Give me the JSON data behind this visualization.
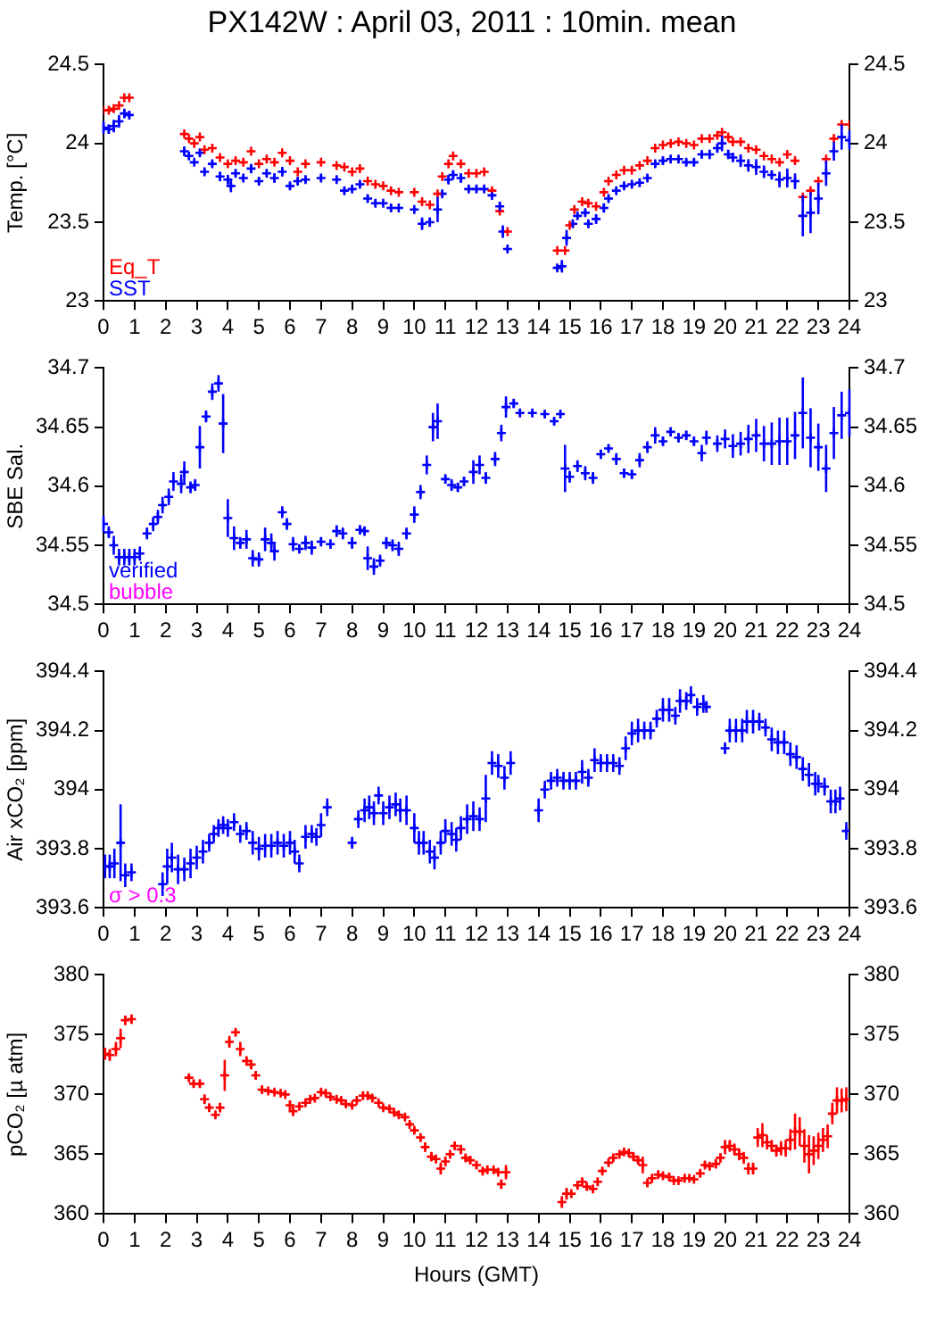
{
  "chart_data": [
    {
      "type": "scatter",
      "title": "PX142W : April 03, 2011 : 10min. mean",
      "ylabel": "Temp. [°C]",
      "xlim": [
        0,
        24
      ],
      "xticks": [
        0,
        1,
        2,
        3,
        4,
        5,
        6,
        7,
        8,
        9,
        10,
        11,
        12,
        13,
        14,
        15,
        16,
        17,
        18,
        19,
        20,
        21,
        22,
        23,
        24
      ],
      "ylim": [
        23,
        24.5
      ],
      "yticks": [
        23,
        23.5,
        24,
        24.5
      ],
      "y2lim": [
        23,
        24.5
      ],
      "y2ticks": [
        23,
        23.5,
        24,
        24.5
      ],
      "marker": "cross",
      "legend": "bottom left",
      "series": [
        {
          "name": "Eq_T",
          "color": "#ff0000",
          "x": [
            0,
            0.17,
            0.33,
            0.5,
            0.67,
            0.83,
            2.6,
            2.75,
            2.92,
            3.1,
            3.25,
            3.5,
            3.75,
            4,
            4.25,
            4.5,
            4.75,
            5,
            5.25,
            5.5,
            5.75,
            6,
            6.25,
            6.5,
            7,
            7.5,
            7.75,
            8,
            8.25,
            8.5,
            8.75,
            9,
            9.25,
            9.5,
            10,
            10.25,
            10.5,
            10.75,
            10.9,
            11.1,
            11.25,
            11.5,
            11.75,
            12,
            12.25,
            12.5,
            12.75,
            13,
            14.6,
            14.85,
            15,
            15.15,
            15.4,
            15.6,
            15.85,
            16.1,
            16.25,
            16.5,
            16.75,
            17,
            17.25,
            17.5,
            17.75,
            18,
            18.25,
            18.5,
            18.75,
            19,
            19.25,
            19.5,
            19.75,
            19.9,
            20.1,
            20.25,
            20.5,
            20.75,
            21,
            21.25,
            21.5,
            21.75,
            22,
            22.25,
            22.5,
            22.75,
            23,
            23.25,
            23.5,
            23.75,
            24
          ],
          "values": [
            24.21,
            24.21,
            24.22,
            24.24,
            24.29,
            24.29,
            24.06,
            24.03,
            24.0,
            24.04,
            23.96,
            23.97,
            23.91,
            23.87,
            23.89,
            23.88,
            23.95,
            23.87,
            23.9,
            23.88,
            23.94,
            23.89,
            23.82,
            23.87,
            23.88,
            23.86,
            23.85,
            23.82,
            23.84,
            23.76,
            23.74,
            23.73,
            23.7,
            23.69,
            23.69,
            23.63,
            23.61,
            23.68,
            23.79,
            23.87,
            23.92,
            23.87,
            23.81,
            23.81,
            23.82,
            23.7,
            23.57,
            23.44,
            23.32,
            23.32,
            23.48,
            23.58,
            23.63,
            23.62,
            23.6,
            23.69,
            23.76,
            23.8,
            23.83,
            23.83,
            23.86,
            23.89,
            23.97,
            23.99,
            24.0,
            24.01,
            24.0,
            23.99,
            24.03,
            24.03,
            24.05,
            24.07,
            24.04,
            24.01,
            24.01,
            23.97,
            23.96,
            23.92,
            23.9,
            23.88,
            23.93,
            23.89,
            23.66,
            23.7,
            23.76,
            23.9,
            24.03,
            24.12,
            24.12
          ]
        },
        {
          "name": "SST",
          "color": "#0000ff",
          "x": [
            0,
            0.17,
            0.33,
            0.5,
            0.67,
            0.83,
            2.6,
            2.75,
            2.92,
            3.1,
            3.25,
            3.5,
            3.75,
            4,
            4.1,
            4.25,
            4.5,
            4.75,
            5,
            5.25,
            5.5,
            5.75,
            6,
            6.25,
            6.5,
            7,
            7.5,
            7.75,
            8,
            8.25,
            8.5,
            8.75,
            9,
            9.25,
            9.5,
            10,
            10.25,
            10.5,
            10.75,
            10.9,
            11.1,
            11.25,
            11.5,
            11.75,
            12,
            12.25,
            12.5,
            12.75,
            12.85,
            13,
            14.6,
            14.75,
            14.9,
            15.1,
            15.25,
            15.5,
            15.6,
            15.85,
            16.1,
            16.25,
            16.5,
            16.75,
            17,
            17.25,
            17.5,
            17.75,
            18,
            18.25,
            18.5,
            18.75,
            19,
            19.25,
            19.5,
            19.75,
            19.9,
            20.1,
            20.25,
            20.5,
            20.75,
            21,
            21.25,
            21.5,
            21.75,
            22,
            22.25,
            22.5,
            22.75,
            23,
            23.25,
            23.5,
            23.75,
            24
          ],
          "values": [
            24.1,
            24.09,
            24.11,
            24.14,
            24.19,
            24.18,
            23.95,
            23.92,
            23.88,
            23.94,
            23.82,
            23.87,
            23.79,
            23.77,
            23.73,
            23.81,
            23.78,
            23.84,
            23.76,
            23.81,
            23.78,
            23.82,
            23.73,
            23.76,
            23.77,
            23.78,
            23.77,
            23.7,
            23.71,
            23.74,
            23.65,
            23.62,
            23.62,
            23.59,
            23.59,
            23.58,
            23.49,
            23.5,
            23.58,
            23.68,
            23.77,
            23.8,
            23.78,
            23.71,
            23.71,
            23.71,
            23.67,
            23.6,
            23.44,
            23.33,
            23.21,
            23.22,
            23.4,
            23.49,
            23.54,
            23.56,
            23.49,
            23.52,
            23.59,
            23.65,
            23.7,
            23.73,
            23.74,
            23.75,
            23.78,
            23.87,
            23.89,
            23.9,
            23.9,
            23.88,
            23.88,
            23.93,
            23.93,
            23.97,
            24.0,
            23.93,
            23.91,
            23.89,
            23.86,
            23.85,
            23.82,
            23.8,
            23.77,
            23.78,
            23.76,
            23.54,
            23.56,
            23.65,
            23.81,
            23.95,
            24.04,
            24.02
          ],
          "errors": [
            0.04,
            0.03,
            0.04,
            0.04,
            0.03,
            0.02,
            0.03,
            0.02,
            0.01,
            0.02,
            0.02,
            0.02,
            0.03,
            0.03,
            0.04,
            0.02,
            0.02,
            0.03,
            0.02,
            0.02,
            0.03,
            0.03,
            0.02,
            0.02,
            0.02,
            0.02,
            0.02,
            0.02,
            0.02,
            0.02,
            0.02,
            0.02,
            0.01,
            0.02,
            0.01,
            0.01,
            0.04,
            0.03,
            0.08,
            0.02,
            0.03,
            0.03,
            0.03,
            0.02,
            0.02,
            0.02,
            0.02,
            0.03,
            0.04,
            0.02,
            0.02,
            0.04,
            0.05,
            0.02,
            0.02,
            0.02,
            0.02,
            0.03,
            0.03,
            0.02,
            0.02,
            0.02,
            0.02,
            0.02,
            0.02,
            0.02,
            0.02,
            0.02,
            0.02,
            0.02,
            0.02,
            0.02,
            0.03,
            0.03,
            0.05,
            0.03,
            0.03,
            0.04,
            0.04,
            0.05,
            0.04,
            0.03,
            0.05,
            0.06,
            0.05,
            0.13,
            0.13,
            0.1,
            0.08,
            0.06,
            0.08,
            0.06
          ]
        }
      ]
    },
    {
      "type": "scatter",
      "ylabel": "SBE Sal.",
      "xlim": [
        0,
        24
      ],
      "xticks": [
        0,
        1,
        2,
        3,
        4,
        5,
        6,
        7,
        8,
        9,
        10,
        11,
        12,
        13,
        14,
        15,
        16,
        17,
        18,
        19,
        20,
        21,
        22,
        23,
        24
      ],
      "ylim": [
        34.5,
        34.7
      ],
      "yticks": [
        34.5,
        34.55,
        34.6,
        34.65,
        34.7
      ],
      "y2lim": [
        34.5,
        34.7
      ],
      "y2ticks": [
        34.5,
        34.55,
        34.6,
        34.65,
        34.7
      ],
      "marker": "cross",
      "legend": "bottom left",
      "annotations": [
        "bubble"
      ],
      "series": [
        {
          "name": "verified",
          "color": "#0000ff",
          "x": [
            0,
            0.17,
            0.33,
            0.5,
            0.67,
            0.83,
            1,
            1.17,
            1.4,
            1.6,
            1.75,
            1.9,
            2.1,
            2.25,
            2.5,
            2.6,
            2.8,
            2.95,
            3.1,
            3.3,
            3.5,
            3.7,
            3.85,
            4,
            4.2,
            4.4,
            4.6,
            4.8,
            5,
            5.2,
            5.4,
            5.5,
            5.75,
            5.9,
            6.1,
            6.3,
            6.5,
            6.7,
            7,
            7.3,
            7.5,
            7.7,
            8,
            8.25,
            8.4,
            8.5,
            8.7,
            8.9,
            9.1,
            9.3,
            9.5,
            9.75,
            10,
            10.2,
            10.4,
            10.6,
            10.75,
            11,
            11.2,
            11.4,
            11.6,
            11.9,
            12.1,
            12.3,
            12.6,
            12.8,
            12.95,
            13.2,
            13.4,
            13.8,
            14.2,
            14.5,
            14.7,
            14.85,
            15,
            15.25,
            15.5,
            15.75,
            16,
            16.25,
            16.5,
            16.75,
            17,
            17.25,
            17.5,
            17.75,
            18,
            18.25,
            18.5,
            18.75,
            19,
            19.25,
            19.4,
            19.75,
            20,
            20.25,
            20.5,
            20.75,
            21,
            21.25,
            21.5,
            21.75,
            22,
            22.25,
            22.5,
            22.75,
            23,
            23.25,
            23.5,
            23.75,
            24
          ],
          "values": [
            34.568,
            34.561,
            34.55,
            34.54,
            34.54,
            34.54,
            34.54,
            34.543,
            34.56,
            34.568,
            34.574,
            34.584,
            34.591,
            34.604,
            34.602,
            34.612,
            34.599,
            34.601,
            34.633,
            34.659,
            34.68,
            34.687,
            34.653,
            34.573,
            34.556,
            34.552,
            34.555,
            34.539,
            34.538,
            34.555,
            34.552,
            34.545,
            34.578,
            34.568,
            34.551,
            34.547,
            34.552,
            34.548,
            34.553,
            34.551,
            34.562,
            34.56,
            34.552,
            34.563,
            34.562,
            34.539,
            34.532,
            34.537,
            34.552,
            34.55,
            34.547,
            34.56,
            34.576,
            34.595,
            34.618,
            34.65,
            34.655,
            34.606,
            34.601,
            34.599,
            34.604,
            34.612,
            34.618,
            34.607,
            34.623,
            34.645,
            34.667,
            34.67,
            34.662,
            34.662,
            34.661,
            34.655,
            34.661,
            34.615,
            34.608,
            34.617,
            34.611,
            34.607,
            34.627,
            34.632,
            34.623,
            34.611,
            34.61,
            34.622,
            34.633,
            34.643,
            34.638,
            34.646,
            34.641,
            34.643,
            34.638,
            34.628,
            34.641,
            34.636,
            34.64,
            34.634,
            34.636,
            34.64,
            34.643,
            34.636,
            34.636,
            34.638,
            34.638,
            34.643,
            34.662,
            34.641,
            34.633,
            34.615,
            34.645,
            34.66,
            34.662
          ],
          "errors": [
            0.007,
            0.005,
            0.008,
            0.007,
            0.007,
            0.007,
            0.007,
            0.006,
            0.005,
            0.006,
            0.006,
            0.007,
            0.007,
            0.008,
            0.008,
            0.009,
            0.005,
            0.005,
            0.018,
            0.005,
            0.007,
            0.007,
            0.025,
            0.016,
            0.01,
            0.005,
            0.008,
            0.007,
            0.006,
            0.01,
            0.008,
            0.008,
            0.005,
            0.005,
            0.006,
            0.004,
            0.006,
            0.006,
            0.004,
            0.004,
            0.005,
            0.005,
            0.005,
            0.004,
            0.004,
            0.01,
            0.007,
            0.005,
            0.005,
            0.005,
            0.006,
            0.005,
            0.007,
            0.006,
            0.008,
            0.012,
            0.015,
            0.004,
            0.005,
            0.004,
            0.004,
            0.01,
            0.008,
            0.005,
            0.006,
            0.007,
            0.009,
            0.004,
            0.003,
            0.003,
            0.003,
            0.003,
            0.002,
            0.02,
            0.005,
            0.005,
            0.006,
            0.005,
            0.004,
            0.003,
            0.005,
            0.004,
            0.004,
            0.006,
            0.005,
            0.007,
            0.004,
            0.004,
            0.004,
            0.004,
            0.004,
            0.007,
            0.006,
            0.007,
            0.008,
            0.01,
            0.01,
            0.012,
            0.014,
            0.015,
            0.018,
            0.02,
            0.02,
            0.02,
            0.03,
            0.025,
            0.02,
            0.02,
            0.022,
            0.02,
            0.02
          ]
        }
      ]
    },
    {
      "type": "scatter",
      "ylabel": "Air xCO₂ [ppm]",
      "xlim": [
        0,
        24
      ],
      "xticks": [
        0,
        1,
        2,
        3,
        4,
        5,
        6,
        7,
        8,
        9,
        10,
        11,
        12,
        13,
        14,
        15,
        16,
        17,
        18,
        19,
        20,
        21,
        22,
        23,
        24
      ],
      "ylim": [
        393.6,
        394.4
      ],
      "yticks": [
        393.6,
        393.8,
        394,
        394.2,
        394.4
      ],
      "y2lim": [
        393.6,
        394.4
      ],
      "y2ticks": [
        393.6,
        393.8,
        394,
        394.2,
        394.4
      ],
      "marker": "cross",
      "annotations": [
        "σ > 0.3"
      ],
      "series": [
        {
          "color": "#0000ff",
          "x": [
            0.05,
            0.2,
            0.35,
            0.55,
            0.7,
            0.9,
            1.9,
            2.05,
            2.2,
            2.4,
            2.6,
            2.8,
            3,
            3.2,
            3.4,
            3.55,
            3.7,
            3.85,
            4,
            4.2,
            4.4,
            4.6,
            4.8,
            5,
            5.2,
            5.4,
            5.6,
            5.8,
            6,
            6.15,
            6.3,
            6.5,
            6.7,
            6.85,
            7,
            7.2,
            8,
            8.2,
            8.4,
            8.55,
            8.7,
            8.85,
            9,
            9.2,
            9.4,
            9.55,
            9.75,
            10,
            10.15,
            10.3,
            10.5,
            10.65,
            10.85,
            11,
            11.2,
            11.35,
            11.5,
            11.7,
            11.9,
            12.1,
            12.3,
            12.5,
            12.7,
            12.9,
            13.1,
            14,
            14.2,
            14.4,
            14.6,
            14.8,
            15,
            15.2,
            15.4,
            15.6,
            15.8,
            16,
            16.2,
            16.4,
            16.6,
            16.8,
            17,
            17.2,
            17.4,
            17.6,
            17.8,
            18,
            18.2,
            18.4,
            18.55,
            18.75,
            18.9,
            19.1,
            19.3,
            19.4,
            20,
            20.15,
            20.35,
            20.55,
            20.7,
            20.9,
            21.1,
            21.3,
            21.5,
            21.7,
            21.9,
            22.1,
            22.3,
            22.5,
            22.7,
            22.9,
            23,
            23.2,
            23.4,
            23.55,
            23.7,
            23.9
          ],
          "values": [
            393.74,
            393.74,
            393.75,
            393.82,
            393.71,
            393.72,
            393.68,
            393.74,
            393.77,
            393.73,
            393.73,
            393.75,
            393.77,
            393.79,
            393.82,
            393.85,
            393.87,
            393.88,
            393.87,
            393.89,
            393.85,
            393.86,
            393.82,
            393.8,
            393.81,
            393.81,
            393.82,
            393.81,
            393.82,
            393.79,
            393.75,
            393.84,
            393.85,
            393.84,
            393.88,
            393.94,
            393.82,
            393.9,
            393.93,
            393.94,
            393.92,
            393.98,
            393.92,
            393.94,
            393.95,
            393.93,
            393.93,
            393.87,
            393.82,
            393.82,
            393.79,
            393.77,
            393.82,
            393.86,
            393.85,
            393.83,
            393.87,
            393.9,
            393.91,
            393.9,
            393.97,
            394.09,
            394.08,
            394.04,
            394.09,
            393.93,
            394,
            394.03,
            394.04,
            394.03,
            394.03,
            394.03,
            394.06,
            394.04,
            394.1,
            394.09,
            394.09,
            394.09,
            394.08,
            394.14,
            394.19,
            394.2,
            394.2,
            394.2,
            394.24,
            394.27,
            394.27,
            394.25,
            394.3,
            394.3,
            394.32,
            394.28,
            394.29,
            394.28,
            394.14,
            394.2,
            394.2,
            394.2,
            394.23,
            394.23,
            394.23,
            394.21,
            394.17,
            394.16,
            394.16,
            394.12,
            394.11,
            394.07,
            394.05,
            394.02,
            394.02,
            394.01,
            393.96,
            393.96,
            393.97,
            393.86
          ],
          "errors": [
            0.04,
            0.04,
            0.05,
            0.13,
            0.04,
            0.03,
            0.04,
            0.06,
            0.05,
            0.05,
            0.04,
            0.05,
            0.04,
            0.04,
            0.03,
            0.03,
            0.03,
            0.03,
            0.03,
            0.03,
            0.03,
            0.03,
            0.04,
            0.04,
            0.04,
            0.04,
            0.04,
            0.04,
            0.04,
            0.04,
            0.03,
            0.04,
            0.03,
            0.03,
            0.04,
            0.03,
            0.02,
            0.03,
            0.04,
            0.04,
            0.04,
            0.03,
            0.04,
            0.04,
            0.04,
            0.04,
            0.05,
            0.05,
            0.04,
            0.04,
            0.04,
            0.04,
            0.04,
            0.04,
            0.04,
            0.04,
            0.04,
            0.05,
            0.05,
            0.04,
            0.08,
            0.04,
            0.04,
            0.04,
            0.04,
            0.04,
            0.03,
            0.03,
            0.03,
            0.03,
            0.03,
            0.03,
            0.04,
            0.03,
            0.04,
            0.03,
            0.03,
            0.03,
            0.03,
            0.04,
            0.04,
            0.04,
            0.03,
            0.03,
            0.03,
            0.04,
            0.04,
            0.03,
            0.04,
            0.03,
            0.03,
            0.03,
            0.03,
            0.02,
            0.02,
            0.04,
            0.04,
            0.04,
            0.04,
            0.04,
            0.03,
            0.03,
            0.04,
            0.04,
            0.04,
            0.04,
            0.04,
            0.04,
            0.04,
            0.04,
            0.03,
            0.03,
            0.04,
            0.04,
            0.04,
            0.03
          ]
        }
      ]
    },
    {
      "type": "scatter",
      "ylabel": "pCO₂ [µ atm]",
      "xlabel": "Hours (GMT)",
      "xlim": [
        0,
        24
      ],
      "xticks": [
        0,
        1,
        2,
        3,
        4,
        5,
        6,
        7,
        8,
        9,
        10,
        11,
        12,
        13,
        14,
        15,
        16,
        17,
        18,
        19,
        20,
        21,
        22,
        23,
        24
      ],
      "ylim": [
        360,
        380
      ],
      "yticks": [
        360,
        365,
        370,
        375,
        380
      ],
      "y2lim": [
        360,
        380
      ],
      "y2ticks": [
        360,
        365,
        370,
        375,
        380
      ],
      "marker": "cross",
      "series": [
        {
          "color": "#ff0000",
          "x": [
            0.05,
            0.2,
            0.4,
            0.55,
            0.7,
            0.9,
            2.75,
            2.9,
            3.1,
            3.25,
            3.4,
            3.6,
            3.75,
            3.9,
            4.05,
            4.25,
            4.4,
            4.6,
            4.75,
            4.9,
            5.1,
            5.3,
            5.5,
            5.7,
            5.85,
            6,
            6.1,
            6.3,
            6.5,
            6.65,
            6.8,
            7,
            7.15,
            7.3,
            7.5,
            7.65,
            7.8,
            8,
            8.15,
            8.35,
            8.5,
            8.65,
            8.85,
            9,
            9.2,
            9.35,
            9.5,
            9.7,
            9.85,
            10,
            10.2,
            10.35,
            10.55,
            10.7,
            10.85,
            11,
            11.15,
            11.3,
            11.5,
            11.65,
            11.8,
            12,
            12.2,
            12.35,
            12.55,
            12.7,
            12.8,
            12.95,
            14.75,
            14.9,
            15.05,
            15.25,
            15.4,
            15.55,
            15.75,
            15.9,
            16.05,
            16.25,
            16.4,
            16.6,
            16.75,
            16.9,
            17.05,
            17.2,
            17.35,
            17.5,
            17.65,
            17.85,
            18,
            18.2,
            18.35,
            18.5,
            18.7,
            18.85,
            19,
            19.2,
            19.35,
            19.5,
            19.7,
            19.85,
            20,
            20.15,
            20.3,
            20.45,
            20.6,
            20.75,
            20.9,
            21.05,
            21.2,
            21.35,
            21.5,
            21.65,
            21.8,
            21.95,
            22.1,
            22.25,
            22.4,
            22.55,
            22.7,
            22.85,
            23,
            23.15,
            23.3,
            23.45,
            23.6,
            23.75,
            23.9
          ],
          "values": [
            373.4,
            373.3,
            373.8,
            374.7,
            376.2,
            376.3,
            371.4,
            370.9,
            370.9,
            369.6,
            368.9,
            368.3,
            368.9,
            371.6,
            374.4,
            375.2,
            373.8,
            372.8,
            372.5,
            371.6,
            370.4,
            370.3,
            370.2,
            370.1,
            370,
            369.1,
            368.6,
            369,
            369.3,
            369.6,
            369.7,
            370.2,
            370.1,
            369.8,
            369.6,
            369.5,
            369.2,
            369.1,
            369.5,
            369.9,
            369.9,
            369.7,
            369.3,
            368.9,
            368.8,
            368.5,
            368.3,
            368.1,
            367.5,
            367,
            366.4,
            365.6,
            364.8,
            364.6,
            363.8,
            364.4,
            365,
            365.7,
            365.4,
            364.7,
            364.5,
            364.1,
            363.6,
            363.7,
            363.7,
            363.5,
            362.5,
            363.5,
            361,
            361.7,
            361.7,
            362.4,
            362.7,
            362.3,
            362.1,
            362.7,
            363.6,
            364.3,
            364.7,
            365,
            365.2,
            365.1,
            364.8,
            364.5,
            364.1,
            362.6,
            363,
            363.3,
            363.2,
            363.1,
            362.8,
            362.8,
            363,
            363,
            362.9,
            363.4,
            364.1,
            364,
            364.2,
            364.7,
            365.6,
            365.7,
            365.4,
            365,
            364.7,
            363.8,
            363.8,
            366.4,
            366.6,
            366,
            365.7,
            365.3,
            365.5,
            365.5,
            366.2,
            366.9,
            366.9,
            365.7,
            365,
            365.3,
            365.7,
            366.2,
            366.5,
            368.4,
            369.5,
            369.5,
            369.6
          ],
          "errors": [
            0.5,
            0.5,
            0.6,
            0.8,
            0.4,
            0.4,
            0.3,
            0.3,
            0.3,
            0.4,
            0.3,
            0.3,
            0.4,
            1.3,
            0.5,
            0.2,
            0.6,
            0.4,
            0.4,
            0.3,
            0.3,
            0.2,
            0.2,
            0.2,
            0.2,
            0.4,
            0.4,
            0.2,
            0.2,
            0.2,
            0.2,
            0.2,
            0.2,
            0.2,
            0.2,
            0.2,
            0.2,
            0.2,
            0.2,
            0.3,
            0.3,
            0.2,
            0.2,
            0.2,
            0.2,
            0.2,
            0.2,
            0.2,
            0.2,
            0.3,
            0.3,
            0.4,
            0.4,
            0.3,
            0.5,
            0.4,
            0.3,
            0.3,
            0.4,
            0.3,
            0.3,
            0.3,
            0.3,
            0.3,
            0.2,
            0.2,
            0.4,
            0.6,
            0.5,
            0.5,
            0.3,
            0.3,
            0.3,
            0.3,
            0.3,
            0.3,
            0.3,
            0.3,
            0.3,
            0.2,
            0.2,
            0.2,
            0.3,
            0.3,
            0.7,
            0.3,
            0.3,
            0.3,
            0.3,
            0.3,
            0.2,
            0.2,
            0.2,
            0.2,
            0.2,
            0.3,
            0.3,
            0.3,
            0.4,
            0.4,
            0.6,
            0.5,
            0.5,
            0.5,
            0.5,
            0.5,
            0.5,
            0.8,
            1,
            0.6,
            0.5,
            0.5,
            0.6,
            0.7,
            0.9,
            1.5,
            1.2,
            1.4,
            1.6,
            1.2,
            1.1,
            1,
            1,
            0.9,
            1.1,
            1,
            1
          ]
        }
      ]
    }
  ]
}
